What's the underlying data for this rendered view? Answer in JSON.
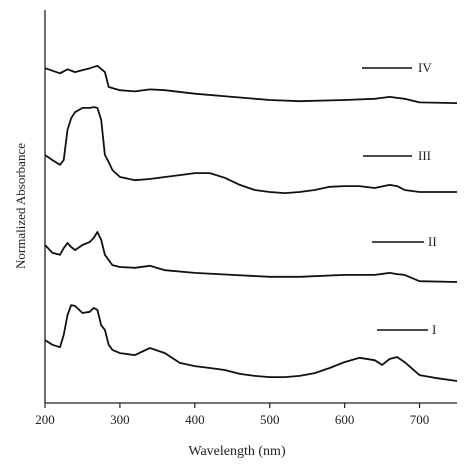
{
  "chart_data": {
    "type": "line",
    "xlabel": "Wavelength (nm)",
    "ylabel": "Normalized Absorbance",
    "xlim": [
      200,
      750
    ],
    "xticks": [
      200,
      300,
      400,
      500,
      600,
      700
    ],
    "ylim": [
      0,
      100
    ],
    "series": [
      {
        "name": "I",
        "color": "#111111",
        "x": [
          200,
          210,
          220,
          225,
          230,
          235,
          240,
          250,
          260,
          265,
          270,
          275,
          280,
          285,
          290,
          300,
          320,
          340,
          360,
          380,
          400,
          420,
          440,
          460,
          480,
          500,
          520,
          540,
          560,
          580,
          600,
          620,
          640,
          650,
          660,
          670,
          680,
          700,
          720,
          750
        ],
        "values": [
          16.0,
          14.8,
          14.2,
          17.3,
          22.4,
          24.9,
          24.7,
          22.9,
          23.2,
          24.2,
          23.7,
          19.8,
          18.6,
          14.8,
          13.5,
          12.7,
          12.2,
          14.0,
          12.7,
          10.2,
          9.4,
          8.9,
          8.4,
          7.4,
          6.9,
          6.6,
          6.6,
          6.9,
          7.6,
          8.9,
          10.4,
          11.5,
          10.9,
          9.7,
          11.2,
          11.7,
          10.4,
          7.1,
          6.4,
          5.6
        ]
      },
      {
        "name": "II",
        "color": "#111111",
        "x": [
          200,
          210,
          220,
          225,
          230,
          235,
          240,
          250,
          260,
          265,
          270,
          275,
          280,
          290,
          300,
          320,
          340,
          360,
          400,
          450,
          500,
          540,
          600,
          640,
          660,
          670,
          680,
          700,
          750
        ],
        "values": [
          40.2,
          38.2,
          37.7,
          39.4,
          40.7,
          39.7,
          38.9,
          40.2,
          41.0,
          42.0,
          43.5,
          41.5,
          37.7,
          35.1,
          34.6,
          34.4,
          34.9,
          33.8,
          33.1,
          32.6,
          32.1,
          32.1,
          32.6,
          32.6,
          33.1,
          32.8,
          32.6,
          31.0,
          30.8
        ]
      },
      {
        "name": "III",
        "color": "#111111",
        "x": [
          200,
          210,
          220,
          225,
          230,
          235,
          240,
          250,
          260,
          265,
          270,
          275,
          280,
          285,
          290,
          300,
          320,
          340,
          360,
          380,
          400,
          420,
          440,
          460,
          480,
          500,
          520,
          540,
          560,
          580,
          600,
          620,
          640,
          660,
          670,
          680,
          700,
          750
        ],
        "values": [
          63.1,
          61.8,
          60.6,
          61.8,
          69.5,
          72.5,
          74.0,
          75.1,
          75.1,
          75.3,
          75.1,
          72.0,
          63.1,
          61.3,
          59.3,
          57.5,
          56.7,
          57.0,
          57.5,
          58.0,
          58.5,
          58.5,
          57.3,
          55.5,
          54.2,
          53.7,
          53.4,
          53.7,
          54.2,
          55.0,
          55.2,
          55.2,
          54.7,
          55.5,
          55.2,
          54.2,
          53.7,
          53.7
        ]
      },
      {
        "name": "IV",
        "color": "#111111",
        "x": [
          200,
          220,
          230,
          240,
          250,
          260,
          270,
          280,
          285,
          300,
          320,
          340,
          360,
          400,
          450,
          500,
          540,
          600,
          640,
          660,
          680,
          700,
          750
        ],
        "values": [
          85.2,
          83.9,
          84.9,
          84.2,
          84.7,
          85.2,
          85.8,
          84.2,
          80.4,
          79.6,
          79.3,
          79.8,
          79.6,
          78.7,
          77.9,
          77.1,
          76.8,
          77.1,
          77.4,
          77.9,
          77.4,
          76.5,
          76.3
        ]
      }
    ]
  }
}
